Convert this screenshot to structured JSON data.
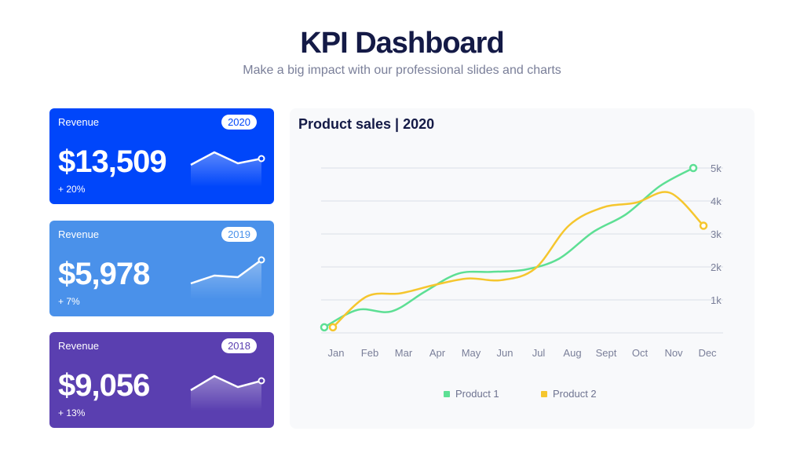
{
  "header": {
    "title": "KPI Dashboard",
    "subtitle": "Make a big impact with our professional slides and charts"
  },
  "cards": [
    {
      "label": "Revenue",
      "year": "2020",
      "value": "$13,509",
      "change": "+ 20%",
      "color": "#0046fa",
      "spark": [
        0.4,
        0.8,
        0.45,
        0.6
      ]
    },
    {
      "label": "Revenue",
      "year": "2019",
      "value": "$5,978",
      "change": "+ 7%",
      "color": "#4a91ea",
      "spark": [
        0.2,
        0.45,
        0.4,
        0.95
      ]
    },
    {
      "label": "Revenue",
      "year": "2018",
      "value": "$9,056",
      "change": "+ 13%",
      "color": "#5a3fb0",
      "spark": [
        0.35,
        0.8,
        0.45,
        0.65
      ]
    }
  ],
  "chart_data": {
    "type": "line",
    "title": "Product sales | 2020",
    "categories": [
      "Jan",
      "Feb",
      "Mar",
      "Apr",
      "May",
      "Jun",
      "Jul",
      "Aug",
      "Sept",
      "Oct",
      "Nov",
      "Dec"
    ],
    "y_ticks": [
      "1k",
      "2k",
      "3k",
      "4k",
      "5k"
    ],
    "ylim": [
      0,
      5000
    ],
    "legend_position": "bottom",
    "series": [
      {
        "name": "Product 1",
        "color": "#5ddf94",
        "values": [
          170,
          700,
          650,
          1250,
          1800,
          1850,
          1920,
          2250,
          3050,
          3600,
          4450,
          5000
        ]
      },
      {
        "name": "Product 2",
        "color": "#f5c62e",
        "values": [
          170,
          1100,
          1200,
          1450,
          1650,
          1600,
          1950,
          3250,
          3800,
          3950,
          4250,
          3250
        ]
      }
    ]
  }
}
